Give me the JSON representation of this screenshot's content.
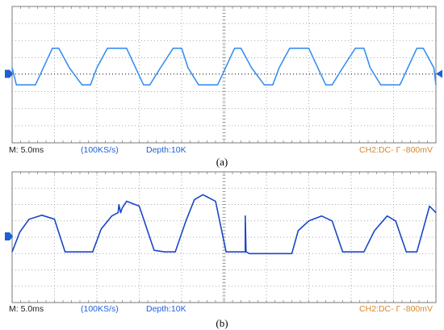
{
  "chart_data": [
    {
      "type": "line",
      "panel_label": "(a)",
      "grid": true,
      "ylim": [
        -4,
        4
      ],
      "x_divisions": 10,
      "trigger_level": 0.05,
      "series": [
        {
          "x": [
            0,
            0.1,
            0.55,
            0.95,
            1.1,
            1.35,
            1.65,
            1.85,
            2.0,
            2.25,
            2.7,
            3.1,
            3.25,
            3.5,
            3.8,
            4.0,
            4.15,
            4.4,
            4.85,
            5.25,
            5.4,
            5.65,
            5.95,
            6.15,
            6.3,
            6.55,
            7.0,
            7.4,
            7.55,
            7.8,
            8.1,
            8.3,
            8.45,
            8.7,
            9.15,
            9.55,
            9.7,
            9.95,
            10.0
          ],
          "y": [
            0.4,
            -0.6,
            -0.6,
            1.55,
            1.55,
            0.4,
            -0.6,
            -0.6,
            0.4,
            1.55,
            1.55,
            -0.6,
            -0.6,
            0.4,
            1.55,
            1.55,
            0.4,
            -0.6,
            -0.6,
            1.55,
            1.55,
            0.4,
            -0.6,
            -0.6,
            0.4,
            1.55,
            1.55,
            -0.6,
            -0.6,
            0.4,
            1.55,
            1.55,
            0.4,
            -0.6,
            -0.6,
            1.55,
            1.55,
            0.4,
            -0.6
          ]
        }
      ]
    },
    {
      "type": "line",
      "panel_label": "(b)",
      "grid": true,
      "ylim": [
        -4,
        4
      ],
      "x_divisions": 10,
      "trigger_level": 0.05,
      "series": [
        {
          "x": [
            0,
            0.18,
            0.4,
            0.7,
            1.0,
            1.25,
            1.5,
            1.9,
            2.1,
            2.35,
            2.5,
            2.52,
            2.56,
            2.6,
            2.7,
            3.0,
            3.35,
            3.6,
            3.85,
            4.1,
            4.3,
            4.5,
            4.8,
            5.05,
            5.3,
            5.5,
            5.5,
            5.52,
            5.6,
            5.85,
            6.0,
            6.6,
            6.75,
            7.0,
            7.3,
            7.55,
            7.8,
            8.0,
            8.3,
            8.55,
            8.85,
            9.05,
            9.3,
            9.55,
            9.85,
            10.0
          ],
          "y": [
            -0.9,
            0.3,
            1.1,
            1.35,
            1.1,
            -0.9,
            -0.9,
            -0.9,
            0.5,
            1.3,
            1.5,
            2.0,
            1.5,
            1.8,
            2.2,
            1.9,
            -0.8,
            -0.9,
            -0.9,
            1.0,
            2.3,
            2.6,
            2.2,
            -0.9,
            -0.9,
            -0.9,
            1.3,
            -0.9,
            -1.0,
            -1.0,
            -1.0,
            -1.0,
            0.4,
            1.0,
            1.3,
            1.0,
            -0.9,
            -0.9,
            -0.9,
            0.4,
            1.3,
            1.0,
            -0.9,
            -0.9,
            1.9,
            1.5
          ]
        }
      ]
    }
  ],
  "panels": [
    {
      "status": {
        "timebase": "M: 5.0ms",
        "sample_rate": "(100KS/s)",
        "depth": "Depth:10K",
        "trigger": "CH2:DC- Γ -800mV"
      },
      "caption": "(a)"
    },
    {
      "status": {
        "timebase": "M: 5.0ms",
        "sample_rate": "(100KS/s)",
        "depth": "Depth:10K",
        "trigger": "CH2:DC- Γ -800mV"
      },
      "caption": "(b)"
    }
  ],
  "colors": {
    "trace_a": "#3a8ff0",
    "trace_b": "#1947c8",
    "grid": "#8c8c8c",
    "ground_marker": "#1f5fd6",
    "trigger_marker": "#1f5fd6"
  }
}
